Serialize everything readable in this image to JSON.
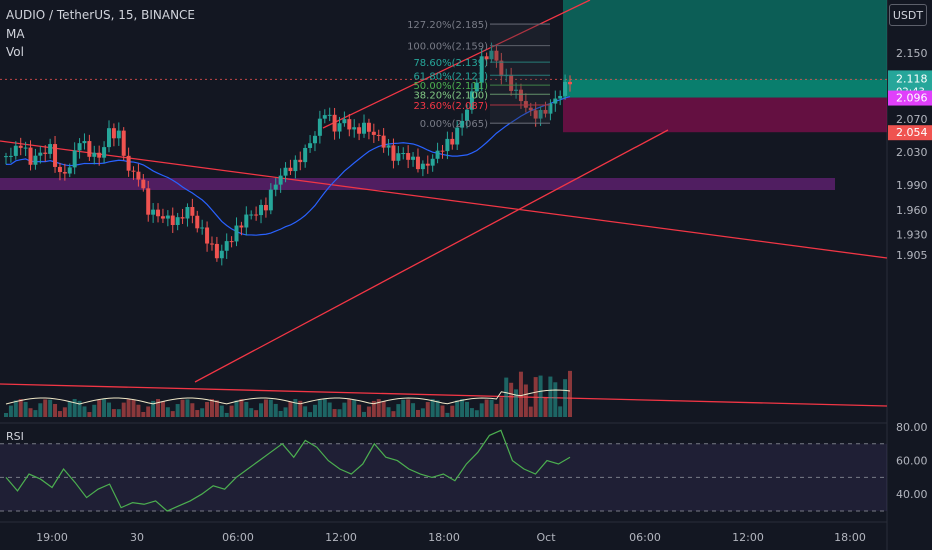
{
  "header": {
    "symbol": "AUDIO / TetherUS, 15, BINANCE",
    "ma": "MA",
    "vol": "Vol",
    "rsi": "RSI",
    "currency": "USDT"
  },
  "colors": {
    "background": "#131722",
    "up": "#26a69a",
    "down": "#ef5350",
    "ma_line": "#2962ff",
    "trendline": "#f23645",
    "rsi_line": "#4caf50",
    "rsi_band": "#7e57c2",
    "zone": "#9c27b0",
    "target": "#089981",
    "stop": "#880e4f"
  },
  "chart_data": {
    "type": "candlestick",
    "symbol": "AUDIO/USDT",
    "timeframe": "15",
    "exchange": "BINANCE",
    "x_ticks": [
      "19:00",
      "30",
      "06:00",
      "12:00",
      "18:00",
      "Oct",
      "06:00",
      "12:00",
      "18:00"
    ],
    "price_ticks": [
      "2.150",
      "2.110",
      "2.070",
      "2.030",
      "1.990",
      "1.960",
      "1.930",
      "1.905"
    ],
    "rsi_ticks": [
      "80.00",
      "60.00",
      "40.00"
    ],
    "price_labels": {
      "last": "2.118",
      "countdown": "02:43",
      "entry": "2.096",
      "stop": "2.054"
    },
    "fib_levels": [
      {
        "ratio": "127.20%",
        "price": "2.185"
      },
      {
        "ratio": "100.00%",
        "price": "2.159"
      },
      {
        "ratio": "78.60%",
        "price": "2.139"
      },
      {
        "ratio": "61.80%",
        "price": "2.123"
      },
      {
        "ratio": "50.00%",
        "price": "2.111"
      },
      {
        "ratio": "38.20%",
        "price": "2.100"
      },
      {
        "ratio": "23.60%",
        "price": "2.087"
      },
      {
        "ratio": "0.00%",
        "price": "2.065"
      }
    ],
    "close_path": [
      2.025,
      2.04,
      2.02,
      2.03,
      2.035,
      2.0,
      2.01,
      2.045,
      2.03,
      2.025,
      2.055,
      2.05,
      2.005,
      2.0,
      1.96,
      1.955,
      1.95,
      1.945,
      1.96,
      1.94,
      1.925,
      1.905,
      1.92,
      1.935,
      1.95,
      1.955,
      1.965,
      1.995,
      2.01,
      2.015,
      2.03,
      2.05,
      2.08,
      2.06,
      2.07,
      2.055,
      2.06,
      2.05,
      2.04,
      2.025,
      2.03,
      2.02,
      2.01,
      2.02,
      2.035,
      2.045,
      2.07,
      2.1,
      2.14,
      2.15,
      2.125,
      2.11,
      2.095,
      2.078,
      2.075,
      2.085,
      2.1,
      2.118
    ],
    "rsi_path": [
      50,
      42,
      52,
      49,
      44,
      55,
      47,
      38,
      43,
      46,
      32,
      35,
      34,
      36,
      30,
      33,
      36,
      40,
      45,
      43,
      50,
      55,
      60,
      65,
      70,
      62,
      72,
      68,
      60,
      55,
      52,
      58,
      70,
      62,
      60,
      55,
      52,
      50,
      52,
      48,
      58,
      65,
      75,
      78,
      60,
      55,
      52,
      60,
      58,
      62
    ],
    "rsi_band": [
      30,
      70
    ],
    "ma_desc": "moving average below price"
  }
}
